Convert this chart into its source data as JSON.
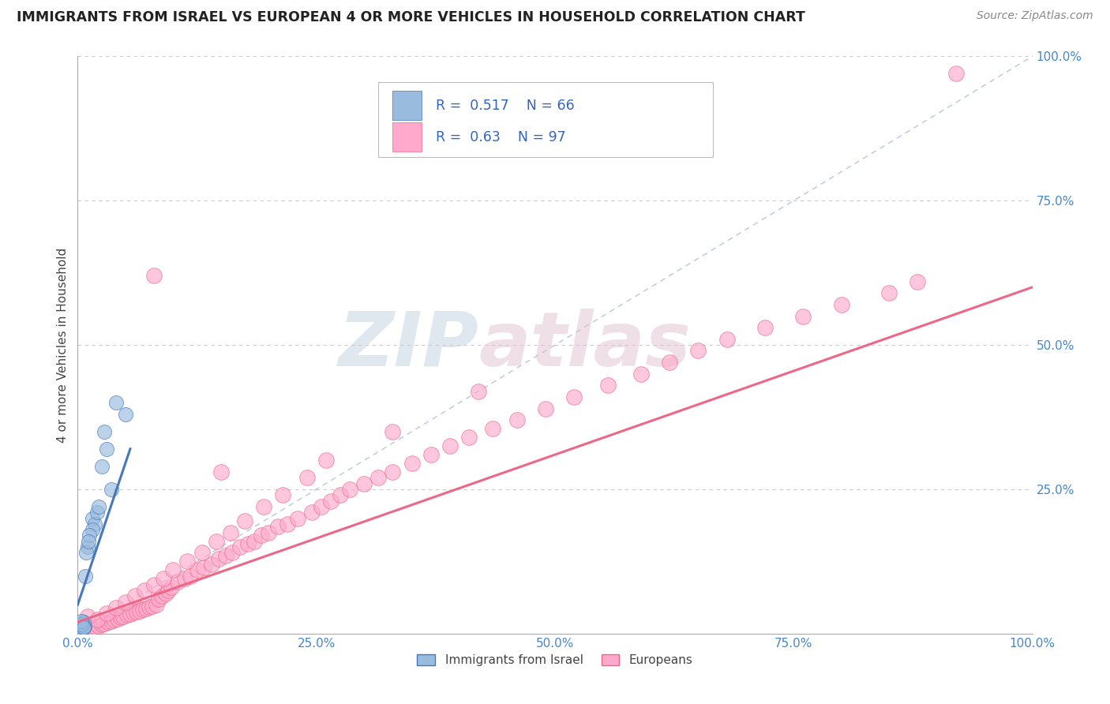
{
  "title": "IMMIGRANTS FROM ISRAEL VS EUROPEAN 4 OR MORE VEHICLES IN HOUSEHOLD CORRELATION CHART",
  "source": "Source: ZipAtlas.com",
  "ylabel": "4 or more Vehicles in Household",
  "xlim": [
    0,
    1.0
  ],
  "ylim": [
    0,
    1.0
  ],
  "xticklabels": [
    "0.0%",
    "25.0%",
    "50.0%",
    "75.0%",
    "100.0%"
  ],
  "yticklabels": [
    "",
    "25.0%",
    "50.0%",
    "75.0%",
    "100.0%"
  ],
  "legend1_label": "Immigrants from Israel",
  "legend2_label": "Europeans",
  "R1": 0.517,
  "N1": 66,
  "R2": 0.63,
  "N2": 97,
  "blue_color": "#99BBDD",
  "pink_color": "#FFAACC",
  "blue_line_color": "#4477BB",
  "pink_line_color": "#EE6688",
  "watermark_color": "#CCDDED",
  "grid_color": "#CCCCCC",
  "israel_x": [
    0.002,
    0.003,
    0.001,
    0.002,
    0.003,
    0.001,
    0.002,
    0.001,
    0.003,
    0.002,
    0.001,
    0.002,
    0.003,
    0.001,
    0.002,
    0.001,
    0.002,
    0.003,
    0.001,
    0.002,
    0.001,
    0.002,
    0.001,
    0.003,
    0.002,
    0.001,
    0.002,
    0.001,
    0.002,
    0.003,
    0.001,
    0.002,
    0.003,
    0.001,
    0.002,
    0.001,
    0.002,
    0.001,
    0.001,
    0.002,
    0.004,
    0.005,
    0.006,
    0.004,
    0.005,
    0.007,
    0.006,
    0.005,
    0.004,
    0.006,
    0.015,
    0.018,
    0.02,
    0.022,
    0.015,
    0.008,
    0.01,
    0.012,
    0.009,
    0.011,
    0.03,
    0.025,
    0.028,
    0.04,
    0.05,
    0.035
  ],
  "israel_y": [
    0.001,
    0.001,
    0.002,
    0.002,
    0.001,
    0.003,
    0.001,
    0.002,
    0.001,
    0.002,
    0.001,
    0.003,
    0.002,
    0.004,
    0.001,
    0.002,
    0.003,
    0.002,
    0.005,
    0.001,
    0.006,
    0.002,
    0.007,
    0.001,
    0.003,
    0.004,
    0.002,
    0.008,
    0.001,
    0.003,
    0.009,
    0.004,
    0.002,
    0.01,
    0.005,
    0.011,
    0.003,
    0.012,
    0.013,
    0.006,
    0.015,
    0.012,
    0.01,
    0.018,
    0.008,
    0.014,
    0.02,
    0.016,
    0.022,
    0.011,
    0.2,
    0.19,
    0.21,
    0.22,
    0.18,
    0.1,
    0.15,
    0.17,
    0.14,
    0.16,
    0.32,
    0.29,
    0.35,
    0.4,
    0.38,
    0.25
  ],
  "europe_x": [
    0.002,
    0.005,
    0.008,
    0.012,
    0.015,
    0.018,
    0.022,
    0.025,
    0.028,
    0.032,
    0.035,
    0.038,
    0.042,
    0.045,
    0.048,
    0.052,
    0.055,
    0.058,
    0.062,
    0.065,
    0.068,
    0.072,
    0.075,
    0.078,
    0.082,
    0.085,
    0.088,
    0.092,
    0.095,
    0.098,
    0.105,
    0.112,
    0.118,
    0.125,
    0.132,
    0.14,
    0.148,
    0.155,
    0.162,
    0.17,
    0.178,
    0.185,
    0.192,
    0.2,
    0.21,
    0.22,
    0.23,
    0.245,
    0.255,
    0.265,
    0.275,
    0.285,
    0.3,
    0.315,
    0.33,
    0.35,
    0.37,
    0.39,
    0.41,
    0.435,
    0.46,
    0.49,
    0.52,
    0.555,
    0.59,
    0.62,
    0.65,
    0.68,
    0.72,
    0.76,
    0.8,
    0.85,
    0.88,
    0.01,
    0.02,
    0.03,
    0.04,
    0.05,
    0.06,
    0.07,
    0.08,
    0.09,
    0.1,
    0.115,
    0.13,
    0.145,
    0.16,
    0.175,
    0.195,
    0.215,
    0.24,
    0.26,
    0.33,
    0.42,
    0.15,
    0.08,
    0.92
  ],
  "europe_y": [
    0.002,
    0.004,
    0.006,
    0.008,
    0.01,
    0.012,
    0.014,
    0.016,
    0.018,
    0.02,
    0.022,
    0.024,
    0.026,
    0.028,
    0.03,
    0.032,
    0.034,
    0.036,
    0.038,
    0.04,
    0.042,
    0.044,
    0.046,
    0.048,
    0.05,
    0.06,
    0.065,
    0.07,
    0.075,
    0.08,
    0.09,
    0.095,
    0.1,
    0.11,
    0.115,
    0.12,
    0.13,
    0.135,
    0.14,
    0.15,
    0.155,
    0.16,
    0.17,
    0.175,
    0.185,
    0.19,
    0.2,
    0.21,
    0.22,
    0.23,
    0.24,
    0.25,
    0.26,
    0.27,
    0.28,
    0.295,
    0.31,
    0.325,
    0.34,
    0.355,
    0.37,
    0.39,
    0.41,
    0.43,
    0.45,
    0.47,
    0.49,
    0.51,
    0.53,
    0.55,
    0.57,
    0.59,
    0.61,
    0.03,
    0.025,
    0.035,
    0.045,
    0.055,
    0.065,
    0.075,
    0.085,
    0.095,
    0.11,
    0.125,
    0.14,
    0.16,
    0.175,
    0.195,
    0.22,
    0.24,
    0.27,
    0.3,
    0.35,
    0.42,
    0.28,
    0.62,
    0.97
  ]
}
